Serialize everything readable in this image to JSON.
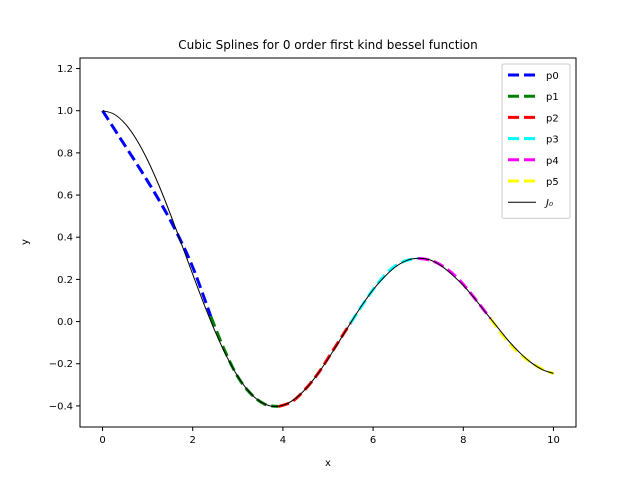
{
  "chart_data": {
    "type": "line",
    "title": "Cubic Splines for 0 order first kind bessel function",
    "xlabel": "x",
    "ylabel": "y",
    "xlim": [
      -0.5,
      10.5
    ],
    "ylim": [
      -0.5,
      1.25
    ],
    "xticks": [
      0,
      2,
      4,
      6,
      8,
      10
    ],
    "xtick_labels": [
      "0",
      "2",
      "4",
      "6",
      "8",
      "10"
    ],
    "yticks": [
      -0.4,
      -0.2,
      0.0,
      0.2,
      0.4,
      0.6,
      0.8,
      1.0,
      1.2
    ],
    "ytick_labels": [
      "−0.4",
      "−0.2",
      "0.0",
      "0.2",
      "0.4",
      "0.6",
      "0.8",
      "1.0",
      "1.2"
    ],
    "grid": false,
    "legend_position": "top-right",
    "reference_function": {
      "name": "J_0",
      "color": "#000000",
      "x": [
        0,
        0.25,
        0.5,
        0.75,
        1,
        1.25,
        1.5,
        1.75,
        2,
        2.25,
        2.5,
        2.75,
        3,
        3.25,
        3.5,
        3.75,
        4,
        4.25,
        4.5,
        4.75,
        5,
        5.25,
        5.5,
        5.75,
        6,
        6.25,
        6.5,
        6.75,
        7,
        7.25,
        7.5,
        7.75,
        8,
        8.25,
        8.5,
        8.75,
        9,
        9.25,
        9.5,
        9.75,
        10
      ],
      "y": [
        1.0,
        0.9844,
        0.9385,
        0.8642,
        0.7652,
        0.6459,
        0.5118,
        0.369,
        0.2239,
        0.0827,
        -0.0484,
        -0.1641,
        -0.2601,
        -0.3328,
        -0.3801,
        -0.4014,
        -0.3971,
        -0.3692,
        -0.3205,
        -0.255,
        -0.1776,
        -0.0931,
        -0.0068,
        0.0762,
        0.1506,
        0.2115,
        0.2601,
        0.2899,
        0.3001,
        0.2931,
        0.2663,
        0.2229,
        0.1717,
        0.1098,
        0.0419,
        -0.0244,
        -0.0903,
        -0.1469,
        -0.1939,
        -0.2274,
        -0.2459
      ]
    },
    "series": [
      {
        "name": "p0",
        "color": "#0000ff",
        "x": [
          0,
          0.4,
          0.8,
          1.2,
          1.6,
          2.0,
          2.4
        ],
        "y": [
          1.0,
          0.867,
          0.734,
          0.595,
          0.441,
          0.258,
          0.025
        ]
      },
      {
        "name": "p1",
        "color": "#008000",
        "x": [
          2.4,
          2.7,
          3.0,
          3.3,
          3.6,
          3.9
        ],
        "y": [
          0.025,
          -0.133,
          -0.262,
          -0.345,
          -0.392,
          -0.403
        ]
      },
      {
        "name": "p2",
        "color": "#ff0000",
        "x": [
          3.9,
          4.2,
          4.5,
          4.8,
          5.1,
          5.5
        ],
        "y": [
          -0.403,
          -0.38,
          -0.32,
          -0.24,
          -0.14,
          -0.007
        ]
      },
      {
        "name": "p3",
        "color": "#00ffff",
        "x": [
          5.5,
          5.8,
          6.1,
          6.4,
          6.7,
          7.0
        ],
        "y": [
          -0.007,
          0.09,
          0.18,
          0.249,
          0.287,
          0.3
        ]
      },
      {
        "name": "p4",
        "color": "#ff00ff",
        "x": [
          7.0,
          7.3,
          7.6,
          7.9,
          8.2,
          8.6
        ],
        "y": [
          0.3,
          0.289,
          0.255,
          0.2,
          0.125,
          0.015
        ]
      },
      {
        "name": "p5",
        "color": "#ffff00",
        "x": [
          8.6,
          8.9,
          9.2,
          9.5,
          9.8,
          10.0
        ],
        "y": [
          0.015,
          -0.072,
          -0.143,
          -0.194,
          -0.23,
          -0.246
        ]
      }
    ],
    "legend": [
      {
        "label": "p0",
        "color": "#0000ff",
        "style": "dashed"
      },
      {
        "label": "p1",
        "color": "#008000",
        "style": "dashed"
      },
      {
        "label": "p2",
        "color": "#ff0000",
        "style": "dashed"
      },
      {
        "label": "p3",
        "color": "#00ffff",
        "style": "dashed"
      },
      {
        "label": "p4",
        "color": "#ff00ff",
        "style": "dashed"
      },
      {
        "label": "p5",
        "color": "#ffff00",
        "style": "dashed"
      },
      {
        "label": "J₀",
        "color": "#000000",
        "style": "solid"
      }
    ]
  }
}
